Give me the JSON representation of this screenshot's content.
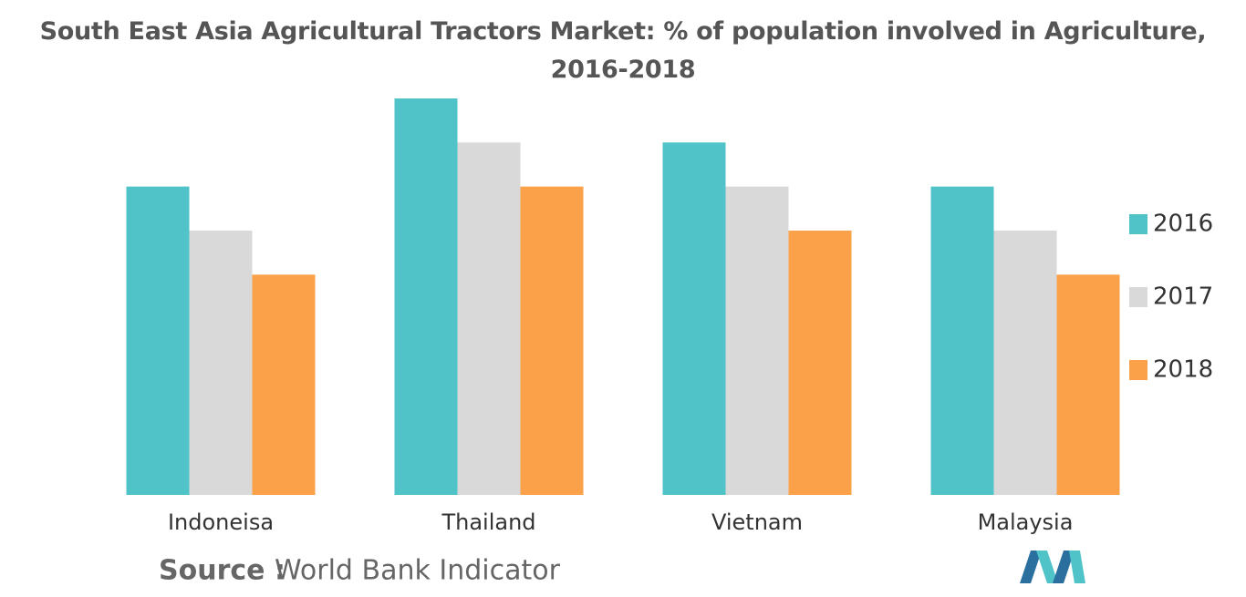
{
  "chart_data": {
    "type": "bar",
    "title": "South East Asia Agricultural Tractors Market: % of population involved in Agriculture, 2016-2018",
    "categories": [
      "Indoneisa",
      "Thailand",
      "Vietnam",
      "Malaysia"
    ],
    "series": [
      {
        "name": "2016",
        "color": "#4fc3c8",
        "values": [
          7,
          9,
          8,
          7
        ]
      },
      {
        "name": "2017",
        "color": "#d9d9d9",
        "values": [
          6,
          8,
          7,
          6
        ]
      },
      {
        "name": "2018",
        "color": "#fba14a",
        "values": [
          5,
          7,
          6,
          5
        ]
      }
    ],
    "ylim": [
      0,
      9
    ],
    "legend": "right",
    "source_label": "Source :",
    "source": "World Bank Indicator"
  }
}
